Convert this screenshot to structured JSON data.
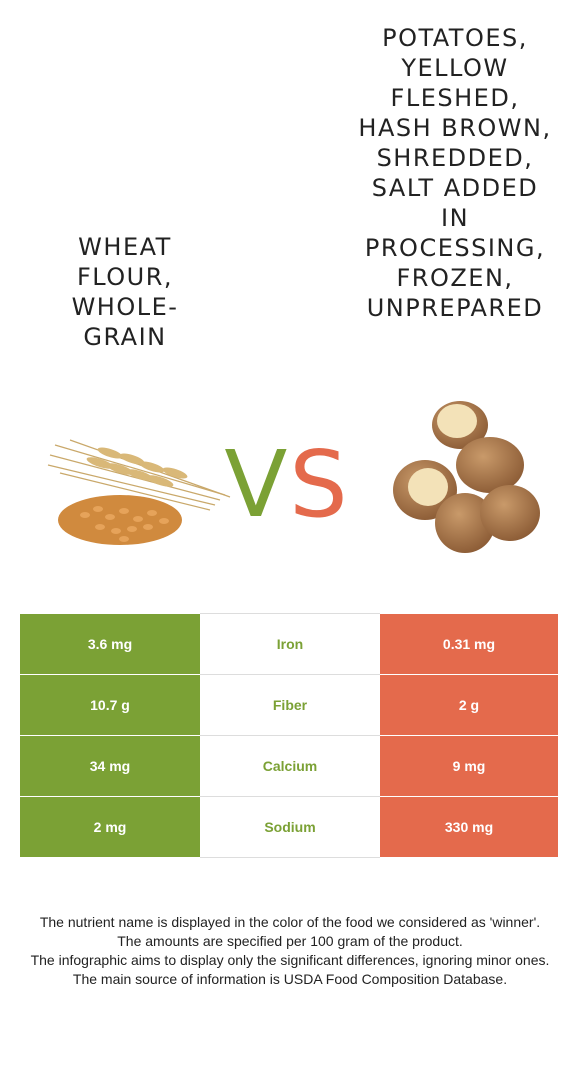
{
  "food_left": {
    "name": "Wheat flour, whole-grain",
    "color": "#7ba135",
    "image_icon": "wheat-grain-icon"
  },
  "food_right": {
    "name": "Potatoes, yellow fleshed, hash brown, shredded, salt added in processing, frozen, unprepared",
    "color": "#e46a4c",
    "image_icon": "potato-icon"
  },
  "vs": {
    "v": "V",
    "s": "S"
  },
  "rows": [
    {
      "nutrient": "Iron",
      "left": "3.6 mg",
      "right": "0.31 mg",
      "winner": "left"
    },
    {
      "nutrient": "Fiber",
      "left": "10.7 g",
      "right": "2 g",
      "winner": "left"
    },
    {
      "nutrient": "Calcium",
      "left": "34 mg",
      "right": "9 mg",
      "winner": "left"
    },
    {
      "nutrient": "Sodium",
      "left": "2 mg",
      "right": "330 mg",
      "winner": "left"
    }
  ],
  "footer": [
    "The nutrient name is displayed in the color of the food we considered as 'winner'.",
    "The amounts are specified per 100 gram of the product.",
    "The infographic aims to display only the significant differences, ignoring minor ones.",
    "The main source of information is USDA Food Composition Database."
  ]
}
